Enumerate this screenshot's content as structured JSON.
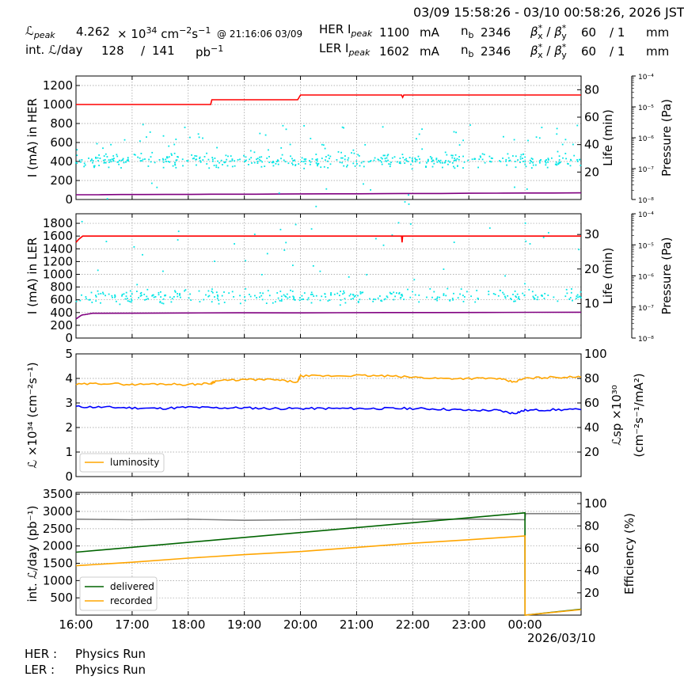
{
  "header": {
    "time_range": "03/09 15:58:26 - 03/10 00:58:26, 2026 JST",
    "lum_peak_label": "ℒ",
    "lum_peak_sub": "peak",
    "lum_peak_value": "4.262",
    "lum_peak_exp": "34",
    "lum_peak_unit_a": "cm",
    "lum_peak_unit_b": "s",
    "lum_peak_time": "@ 21:16:06 03/09",
    "int_lum_label": "int. ℒ/day",
    "int_lum_value": "128",
    "int_lum_total": "141",
    "int_lum_unit": "pb",
    "her_label": "HER I",
    "her_sub": "peak",
    "her_value": "1100",
    "her_unit": "mA",
    "her_nb_label": "n",
    "her_nb_value": "2346",
    "her_beta": "60",
    "her_beta_y": "1",
    "her_beta_unit": "mm",
    "ler_label": "LER I",
    "ler_sub": "peak",
    "ler_value": "1602",
    "ler_unit": "mA",
    "ler_nb_label": "n",
    "ler_nb_value": "2346",
    "ler_beta": "60",
    "ler_beta_y": "1",
    "ler_beta_unit": "mm"
  },
  "footer": {
    "her_status_label": "HER :",
    "her_status": "Physics Run",
    "ler_status_label": "LER :",
    "ler_status": "Physics Run",
    "date_label": "2026/03/10"
  },
  "colors": {
    "current": "#ff0000",
    "life": "#00e5e5",
    "pressure": "#800080",
    "luminosity": "#ffa500",
    "specific": "#0000ff",
    "delivered": "#006400",
    "recorded": "#ffa500",
    "efficiency": "#808080"
  },
  "chart_data": [
    {
      "type": "line",
      "name": "her",
      "ylabel": "I (mA) in HER",
      "ylim": [
        0,
        1300
      ],
      "yticks": [
        0,
        200,
        400,
        600,
        800,
        1000,
        1200
      ],
      "y2label": "Life (min)",
      "y2lim": [
        0,
        90
      ],
      "y2ticks": [
        20,
        40,
        60,
        80
      ],
      "y3label": "Pressure (Pa)",
      "y3ticks": [
        "10⁻⁸",
        "10⁻⁷",
        "10⁻⁶",
        "10⁻⁵",
        "10⁻⁴"
      ],
      "x_ticks": [
        "16:00",
        "17:00",
        "18:00",
        "19:00",
        "20:00",
        "21:00",
        "22:00",
        "23:00",
        "00:00"
      ],
      "grid": true,
      "current": {
        "x": [
          0,
          2.4,
          2.42,
          3.95,
          4.0,
          5.8,
          5.82,
          5.84,
          9.0
        ],
        "y": [
          1000,
          1000,
          1050,
          1050,
          1100,
          1100,
          1075,
          1100,
          1100
        ]
      },
      "pressure": {
        "x": [
          0,
          4.0,
          9.0
        ],
        "y": [
          50,
          58,
          70
        ]
      },
      "life_scatter": {
        "x_range": [
          0,
          9
        ],
        "center": 28,
        "spread": 6,
        "outliers": 55
      }
    },
    {
      "type": "line",
      "name": "ler",
      "ylabel": "I (mA) in LER",
      "ylim": [
        0,
        1950
      ],
      "yticks": [
        0,
        200,
        400,
        600,
        800,
        1000,
        1200,
        1400,
        1600,
        1800
      ],
      "y2label": "Life (min)",
      "y2lim": [
        0,
        36
      ],
      "y2ticks": [
        10,
        20,
        30
      ],
      "y3label": "Pressure (Pa)",
      "y3ticks": [
        "10⁻⁸",
        "10⁻⁷",
        "10⁻⁶",
        "10⁻⁵",
        "10⁻⁴"
      ],
      "x_ticks": [
        "16:00",
        "17:00",
        "18:00",
        "19:00",
        "20:00",
        "21:00",
        "22:00",
        "23:00",
        "00:00"
      ],
      "grid": true,
      "current": {
        "x": [
          0,
          0.05,
          0.12,
          5.8,
          5.81,
          5.82,
          9.0
        ],
        "y": [
          1500,
          1550,
          1600,
          1600,
          1500,
          1600,
          1600
        ]
      },
      "pressure": {
        "x": [
          0,
          0.1,
          0.3,
          9.0
        ],
        "y": [
          300,
          360,
          390,
          405
        ]
      },
      "life_scatter": {
        "x_range": [
          0,
          9
        ],
        "center": 12,
        "spread": 2.5,
        "outliers": 45
      }
    },
    {
      "type": "line",
      "name": "lum",
      "ylabel": "ℒ ×10³⁴ (cm⁻²s⁻¹)",
      "ylim": [
        0,
        5
      ],
      "yticks": [
        0,
        1,
        2,
        3,
        4,
        5
      ],
      "y2label": "ℒsp ×10³⁰",
      "y2label2": "(cm⁻²s⁻¹/mA²)",
      "y2lim": [
        0,
        100
      ],
      "y2ticks": [
        20,
        40,
        60,
        80,
        100
      ],
      "x_ticks": [
        "16:00",
        "17:00",
        "18:00",
        "19:00",
        "20:00",
        "21:00",
        "22:00",
        "23:00",
        "00:00"
      ],
      "grid": true,
      "legend": [
        "luminosity"
      ],
      "legend_position": "bottom-left",
      "luminosity": {
        "x": [
          0,
          0.5,
          1.0,
          1.5,
          2.0,
          2.4,
          2.5,
          3.0,
          3.5,
          3.95,
          4.0,
          4.5,
          5.0,
          5.5,
          6.0,
          6.5,
          7.0,
          7.5,
          7.8,
          8.0,
          8.5,
          9.0
        ],
        "y": [
          3.75,
          3.8,
          3.75,
          3.78,
          3.75,
          3.8,
          3.9,
          3.95,
          3.95,
          3.85,
          4.1,
          4.1,
          4.12,
          4.1,
          4.05,
          4.0,
          4.0,
          4.0,
          3.85,
          4.0,
          4.05,
          4.05
        ]
      },
      "specific": {
        "x": [
          0,
          0.5,
          1.0,
          1.5,
          2.0,
          2.5,
          3.0,
          3.5,
          4.0,
          4.5,
          5.0,
          5.5,
          6.0,
          6.5,
          7.0,
          7.5,
          7.8,
          8.0,
          8.5,
          9.0
        ],
        "y": [
          57,
          56.5,
          56,
          55.5,
          56.5,
          56,
          56,
          55.5,
          55.5,
          55.5,
          55.5,
          55.5,
          55.5,
          55,
          54,
          54,
          51.5,
          54,
          54.5,
          54.5
        ]
      }
    },
    {
      "type": "line",
      "name": "intlum",
      "ylabel": "int. ℒ/day (pb⁻¹)",
      "ylim": [
        0,
        3550
      ],
      "yticks": [
        500,
        1000,
        1500,
        2000,
        2500,
        3000,
        3500
      ],
      "y2label": "Efficiency (%)",
      "y2lim": [
        0,
        110
      ],
      "y2ticks": [
        20,
        40,
        60,
        80,
        100
      ],
      "x_ticks": [
        "16:00",
        "17:00",
        "18:00",
        "19:00",
        "20:00",
        "21:00",
        "22:00",
        "23:00",
        "00:00"
      ],
      "grid": true,
      "legend": [
        "delivered",
        "recorded"
      ],
      "legend_position": "bottom-left",
      "delivered": {
        "x": [
          0,
          8.0,
          8.001,
          9.0
        ],
        "y": [
          1820,
          2960,
          0,
          170
        ]
      },
      "recorded": {
        "x": [
          0,
          1,
          2,
          3,
          4,
          5,
          6,
          7,
          8.0,
          8.001,
          9.0
        ],
        "y": [
          1430,
          1530,
          1650,
          1750,
          1840,
          1960,
          2080,
          2180,
          2290,
          0,
          160
        ]
      },
      "efficiency": {
        "x": [
          0,
          1,
          2,
          3,
          4,
          5,
          6,
          7,
          8.0,
          8.01,
          9.0
        ],
        "y": [
          86,
          85.5,
          86,
          85,
          85.5,
          86,
          86,
          86,
          85.5,
          91,
          91
        ]
      }
    }
  ]
}
